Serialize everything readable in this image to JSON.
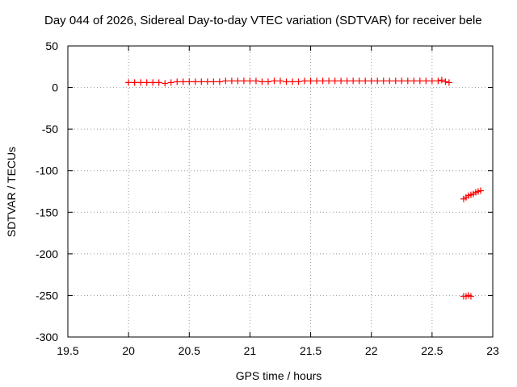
{
  "chart_data": {
    "type": "scatter",
    "title": "Day 044 of 2026, Sidereal Day-to-day VTEC variation (SDTVAR) for receiver bele",
    "xlabel": "GPS time / hours",
    "ylabel": "SDTVAR / TECUs",
    "xlim": [
      19.5,
      23
    ],
    "ylim": [
      -300,
      50
    ],
    "xticks": [
      "19.5",
      "20",
      "20.5",
      "21",
      "21.5",
      "22",
      "22.5",
      "23"
    ],
    "yticks": [
      "50",
      "0",
      "-50",
      "-100",
      "-150",
      "-200",
      "-250",
      "-300"
    ],
    "grid": true,
    "legend": "none",
    "marker": "plus",
    "color": "#ff0000",
    "series": [
      {
        "x": [
          20.0,
          20.05,
          20.1,
          20.15,
          20.2,
          20.25,
          20.3,
          20.35,
          20.4,
          20.45,
          20.5,
          20.55,
          20.6,
          20.65,
          20.7,
          20.75,
          20.8,
          20.85,
          20.9,
          20.95,
          21.0,
          21.05,
          21.1,
          21.15,
          21.2,
          21.25,
          21.3,
          21.35,
          21.4,
          21.45,
          21.5,
          21.55,
          21.6,
          21.65,
          21.7,
          21.75,
          21.8,
          21.85,
          21.9,
          21.95,
          22.0,
          22.05,
          22.1,
          22.15,
          22.2,
          22.25,
          22.3,
          22.35,
          22.4,
          22.45,
          22.5,
          22.55,
          22.58,
          22.61,
          22.64,
          22.76,
          22.78,
          22.8,
          22.82,
          22.84,
          22.86,
          22.88,
          22.9,
          22.76,
          22.78,
          22.8,
          22.82
        ],
        "y": [
          6,
          6,
          6,
          6,
          6,
          6,
          5,
          6,
          7,
          7,
          7,
          7,
          7,
          7,
          7,
          7,
          8,
          8,
          8,
          8,
          8,
          8,
          7,
          7,
          8,
          8,
          7,
          7,
          7,
          8,
          8,
          8,
          8,
          8,
          8,
          8,
          8,
          8,
          8,
          8,
          8,
          8,
          8,
          8,
          8,
          8,
          8,
          8,
          8,
          8,
          8,
          8,
          9,
          7,
          6,
          -134,
          -132,
          -130,
          -129,
          -128,
          -126,
          -125,
          -124,
          -251,
          -251,
          -250,
          -251
        ]
      }
    ]
  }
}
